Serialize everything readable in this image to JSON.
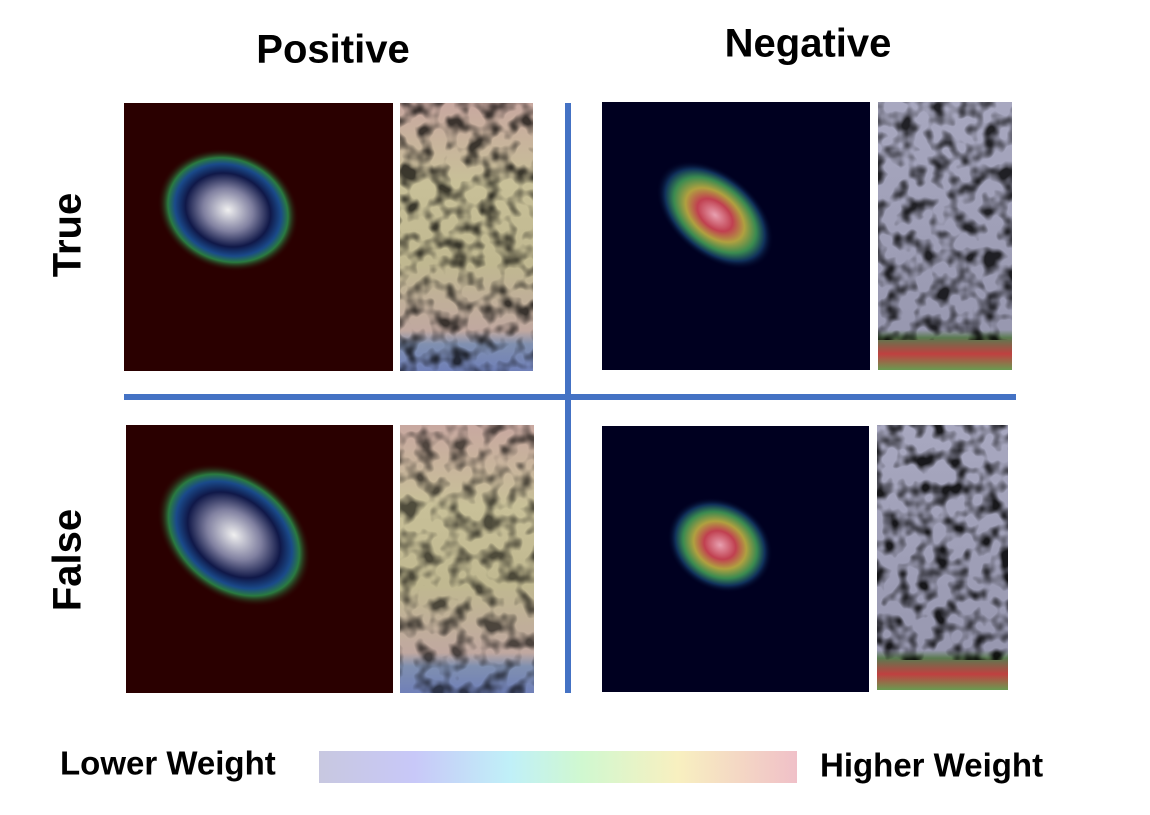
{
  "columns": [
    "Positive",
    "Negative"
  ],
  "rows": [
    "True",
    "False"
  ],
  "colorbar": {
    "low": "Lower Weight",
    "high": "Higher Weight"
  }
}
